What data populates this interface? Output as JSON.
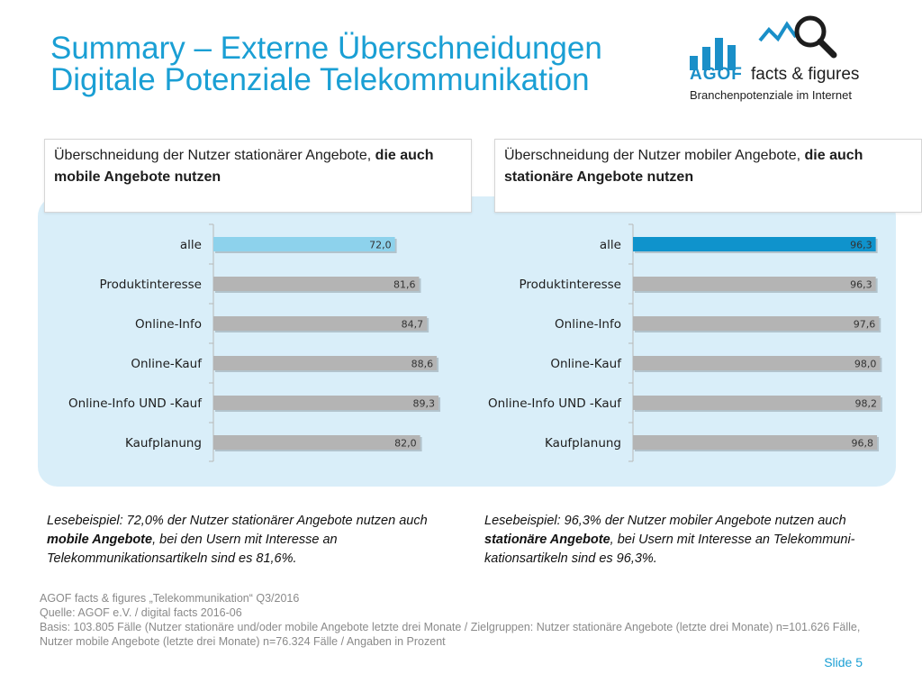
{
  "title": {
    "line1": "Summary – Externe Überschneidungen",
    "line2": "Digitale Potenziale Telekommunikation"
  },
  "logo": {
    "brand": "AGOF",
    "tagline": "facts & figures",
    "subtitle": "Branchenpotenziale im Internet",
    "colors": {
      "blue": "#1a8fc8",
      "dark": "#1d1d1d"
    }
  },
  "left_panel": {
    "title_plain": "Überschneidung der Nutzer stationärer Angebote, ",
    "title_bold": "die auch mobile Angebote nutzen"
  },
  "right_panel": {
    "title_plain": "Überschneidung der Nutzer mobiler Angebote, ",
    "title_bold": "die auch stationäre Angebote nutzen"
  },
  "chart_data": [
    {
      "type": "bar",
      "orientation": "horizontal",
      "categories": [
        "alle",
        "Produktinteresse",
        "Online-Info",
        "Online-Kauf",
        "Online-Info UND -Kauf",
        "Kaufplanung"
      ],
      "values": [
        72.0,
        81.6,
        84.7,
        88.6,
        89.3,
        82.0
      ],
      "value_labels": [
        "72,0",
        "81,6",
        "84,7",
        "88,6",
        "89,3",
        "82,0"
      ],
      "highlight_index": 0,
      "highlight_color": "#8dd2ec",
      "bar_color": "#b4b4b4",
      "xlim": [
        0,
        100
      ],
      "grid": false
    },
    {
      "type": "bar",
      "orientation": "horizontal",
      "categories": [
        "alle",
        "Produktinteresse",
        "Online-Info",
        "Online-Kauf",
        "Online-Info UND -Kauf",
        "Kaufplanung"
      ],
      "values": [
        96.3,
        96.3,
        97.6,
        98.0,
        98.2,
        96.8
      ],
      "value_labels": [
        "96,3",
        "96,3",
        "97,6",
        "98,0",
        "98,2",
        "96,8"
      ],
      "highlight_index": 0,
      "highlight_color": "#0f93cc",
      "bar_color": "#b4b4b4",
      "xlim": [
        0,
        100
      ],
      "grid": false
    }
  ],
  "notes": {
    "left": {
      "p1": "Lesebeispiel: 72,0% der Nutzer stationärer Angebote nutzen auch ",
      "b1": "mobile Angebote",
      "p2": ", bei den Usern mit Interesse an Telekommunikationsartikeln sind es 81,6%."
    },
    "right": {
      "p1": "Lesebeispiel: 96,3% der Nutzer mobiler Angebote nutzen auch ",
      "b1": "stationäre Angebote",
      "p2": ", bei Usern mit Interesse an Telekommuni-kationsartikeln sind es 96,3%."
    }
  },
  "source": {
    "line1": "AGOF facts & figures „Telekommunikation“ Q3/2016",
    "line2": "Quelle: AGOF e.V. / digital facts 2016-06",
    "line3": "Basis: 103.805 Fälle (Nutzer stationäre und/oder mobile Angebote letzte drei Monate / Zielgruppen: Nutzer stationäre Angebote (letzte drei Monate) n=101.626 Fälle, Nutzer mobile Angebote (letzte drei Monate) n=76.324 Fälle / Angaben in Prozent"
  },
  "slide_label": "Slide 5",
  "colors": {
    "accent": "#1a9fd4",
    "panel_bg": "#d9eef9"
  }
}
